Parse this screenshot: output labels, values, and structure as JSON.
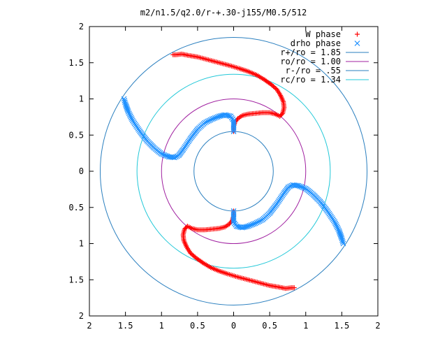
{
  "chart_data": {
    "type": "scatter",
    "title": "m2/n1.5/q2.0/r-+.30-j155/M0.5/512",
    "xlabel": "",
    "ylabel": "",
    "xlim": [
      -2,
      2
    ],
    "ylim": [
      -2,
      2
    ],
    "grid": false,
    "legend_position": "top-right",
    "x_tick_values": [
      -2,
      -1.5,
      -1,
      -0.5,
      0,
      0.5,
      1,
      1.5,
      2
    ],
    "x_tick_labels": [
      "2",
      "1.5",
      "1",
      "0.5",
      "0",
      "0.5",
      "1",
      "1.5",
      "2"
    ],
    "y_tick_values": [
      2,
      1.5,
      1,
      0.5,
      0,
      -0.5,
      -1,
      -1.5,
      -2
    ],
    "y_tick_labels": [
      "2",
      "1.5",
      "1",
      "0.5",
      "0",
      "0.5",
      "1",
      "1.5",
      "2"
    ],
    "circles": [
      {
        "name": "r+/ro = 1.85",
        "radius": 1.85,
        "color": "#2a7fbf"
      },
      {
        "name": "ro/ro = 1.00",
        "radius": 1.0,
        "color": "#a020a0"
      },
      {
        "name": "r-/ro = .55",
        "radius": 0.55,
        "color": "#2a7fbf"
      },
      {
        "name": "rc/ro = 1.34",
        "radius": 1.34,
        "color": "#22c8d8"
      }
    ],
    "series": [
      {
        "name": "W phase",
        "marker": "+",
        "color": "#ff0000",
        "arms": [
          [
            [
              0.0,
              0.55
            ],
            [
              0.0,
              0.62
            ],
            [
              0.02,
              0.68
            ],
            [
              0.06,
              0.73
            ],
            [
              0.12,
              0.77
            ],
            [
              0.2,
              0.79
            ],
            [
              0.3,
              0.8
            ],
            [
              0.4,
              0.81
            ],
            [
              0.5,
              0.81
            ],
            [
              0.58,
              0.79
            ],
            [
              0.64,
              0.76
            ],
            [
              0.68,
              0.8
            ],
            [
              0.7,
              0.88
            ],
            [
              0.69,
              0.96
            ],
            [
              0.65,
              1.05
            ],
            [
              0.6,
              1.13
            ],
            [
              0.52,
              1.2
            ],
            [
              0.42,
              1.27
            ],
            [
              0.32,
              1.33
            ],
            [
              0.2,
              1.38
            ],
            [
              0.08,
              1.42
            ],
            [
              -0.05,
              1.46
            ],
            [
              -0.2,
              1.5
            ],
            [
              -0.35,
              1.54
            ],
            [
              -0.5,
              1.58
            ],
            [
              -0.62,
              1.6
            ],
            [
              -0.72,
              1.62
            ],
            [
              -0.8,
              1.61
            ],
            [
              -0.84,
              1.61
            ]
          ],
          [
            [
              0.0,
              -0.55
            ],
            [
              0.0,
              -0.62
            ],
            [
              -0.02,
              -0.68
            ],
            [
              -0.06,
              -0.73
            ],
            [
              -0.12,
              -0.77
            ],
            [
              -0.2,
              -0.79
            ],
            [
              -0.3,
              -0.8
            ],
            [
              -0.4,
              -0.81
            ],
            [
              -0.5,
              -0.81
            ],
            [
              -0.58,
              -0.79
            ],
            [
              -0.64,
              -0.76
            ],
            [
              -0.68,
              -0.8
            ],
            [
              -0.7,
              -0.88
            ],
            [
              -0.69,
              -0.96
            ],
            [
              -0.65,
              -1.05
            ],
            [
              -0.6,
              -1.13
            ],
            [
              -0.52,
              -1.2
            ],
            [
              -0.42,
              -1.27
            ],
            [
              -0.32,
              -1.33
            ],
            [
              -0.2,
              -1.38
            ],
            [
              -0.08,
              -1.42
            ],
            [
              0.05,
              -1.46
            ],
            [
              0.2,
              -1.5
            ],
            [
              0.35,
              -1.54
            ],
            [
              0.5,
              -1.58
            ],
            [
              0.62,
              -1.6
            ],
            [
              0.72,
              -1.62
            ],
            [
              0.8,
              -1.61
            ],
            [
              0.84,
              -1.61
            ]
          ]
        ]
      },
      {
        "name": "drho phase",
        "marker": "x",
        "color": "#1e90ff",
        "arms": [
          [
            [
              0.0,
              0.55
            ],
            [
              0.0,
              0.62
            ],
            [
              0.0,
              0.7
            ],
            [
              -0.04,
              0.76
            ],
            [
              -0.12,
              0.78
            ],
            [
              -0.2,
              0.76
            ],
            [
              -0.3,
              0.72
            ],
            [
              -0.4,
              0.67
            ],
            [
              -0.5,
              0.58
            ],
            [
              -0.6,
              0.45
            ],
            [
              -0.7,
              0.3
            ],
            [
              -0.76,
              0.22
            ],
            [
              -0.82,
              0.19
            ],
            [
              -0.9,
              0.2
            ],
            [
              -1.0,
              0.24
            ],
            [
              -1.1,
              0.32
            ],
            [
              -1.2,
              0.42
            ],
            [
              -1.3,
              0.55
            ],
            [
              -1.4,
              0.7
            ],
            [
              -1.46,
              0.82
            ],
            [
              -1.5,
              0.93
            ],
            [
              -1.52,
              1.0
            ]
          ],
          [
            [
              0.0,
              -0.55
            ],
            [
              0.0,
              -0.62
            ],
            [
              0.0,
              -0.7
            ],
            [
              0.04,
              -0.76
            ],
            [
              0.12,
              -0.78
            ],
            [
              0.2,
              -0.76
            ],
            [
              0.3,
              -0.72
            ],
            [
              0.4,
              -0.67
            ],
            [
              0.5,
              -0.58
            ],
            [
              0.6,
              -0.45
            ],
            [
              0.7,
              -0.3
            ],
            [
              0.76,
              -0.22
            ],
            [
              0.82,
              -0.19
            ],
            [
              0.9,
              -0.2
            ],
            [
              1.0,
              -0.24
            ],
            [
              1.1,
              -0.32
            ],
            [
              1.2,
              -0.42
            ],
            [
              1.3,
              -0.55
            ],
            [
              1.4,
              -0.7
            ],
            [
              1.46,
              -0.82
            ],
            [
              1.5,
              -0.93
            ],
            [
              1.52,
              -1.0
            ]
          ]
        ]
      }
    ]
  }
}
